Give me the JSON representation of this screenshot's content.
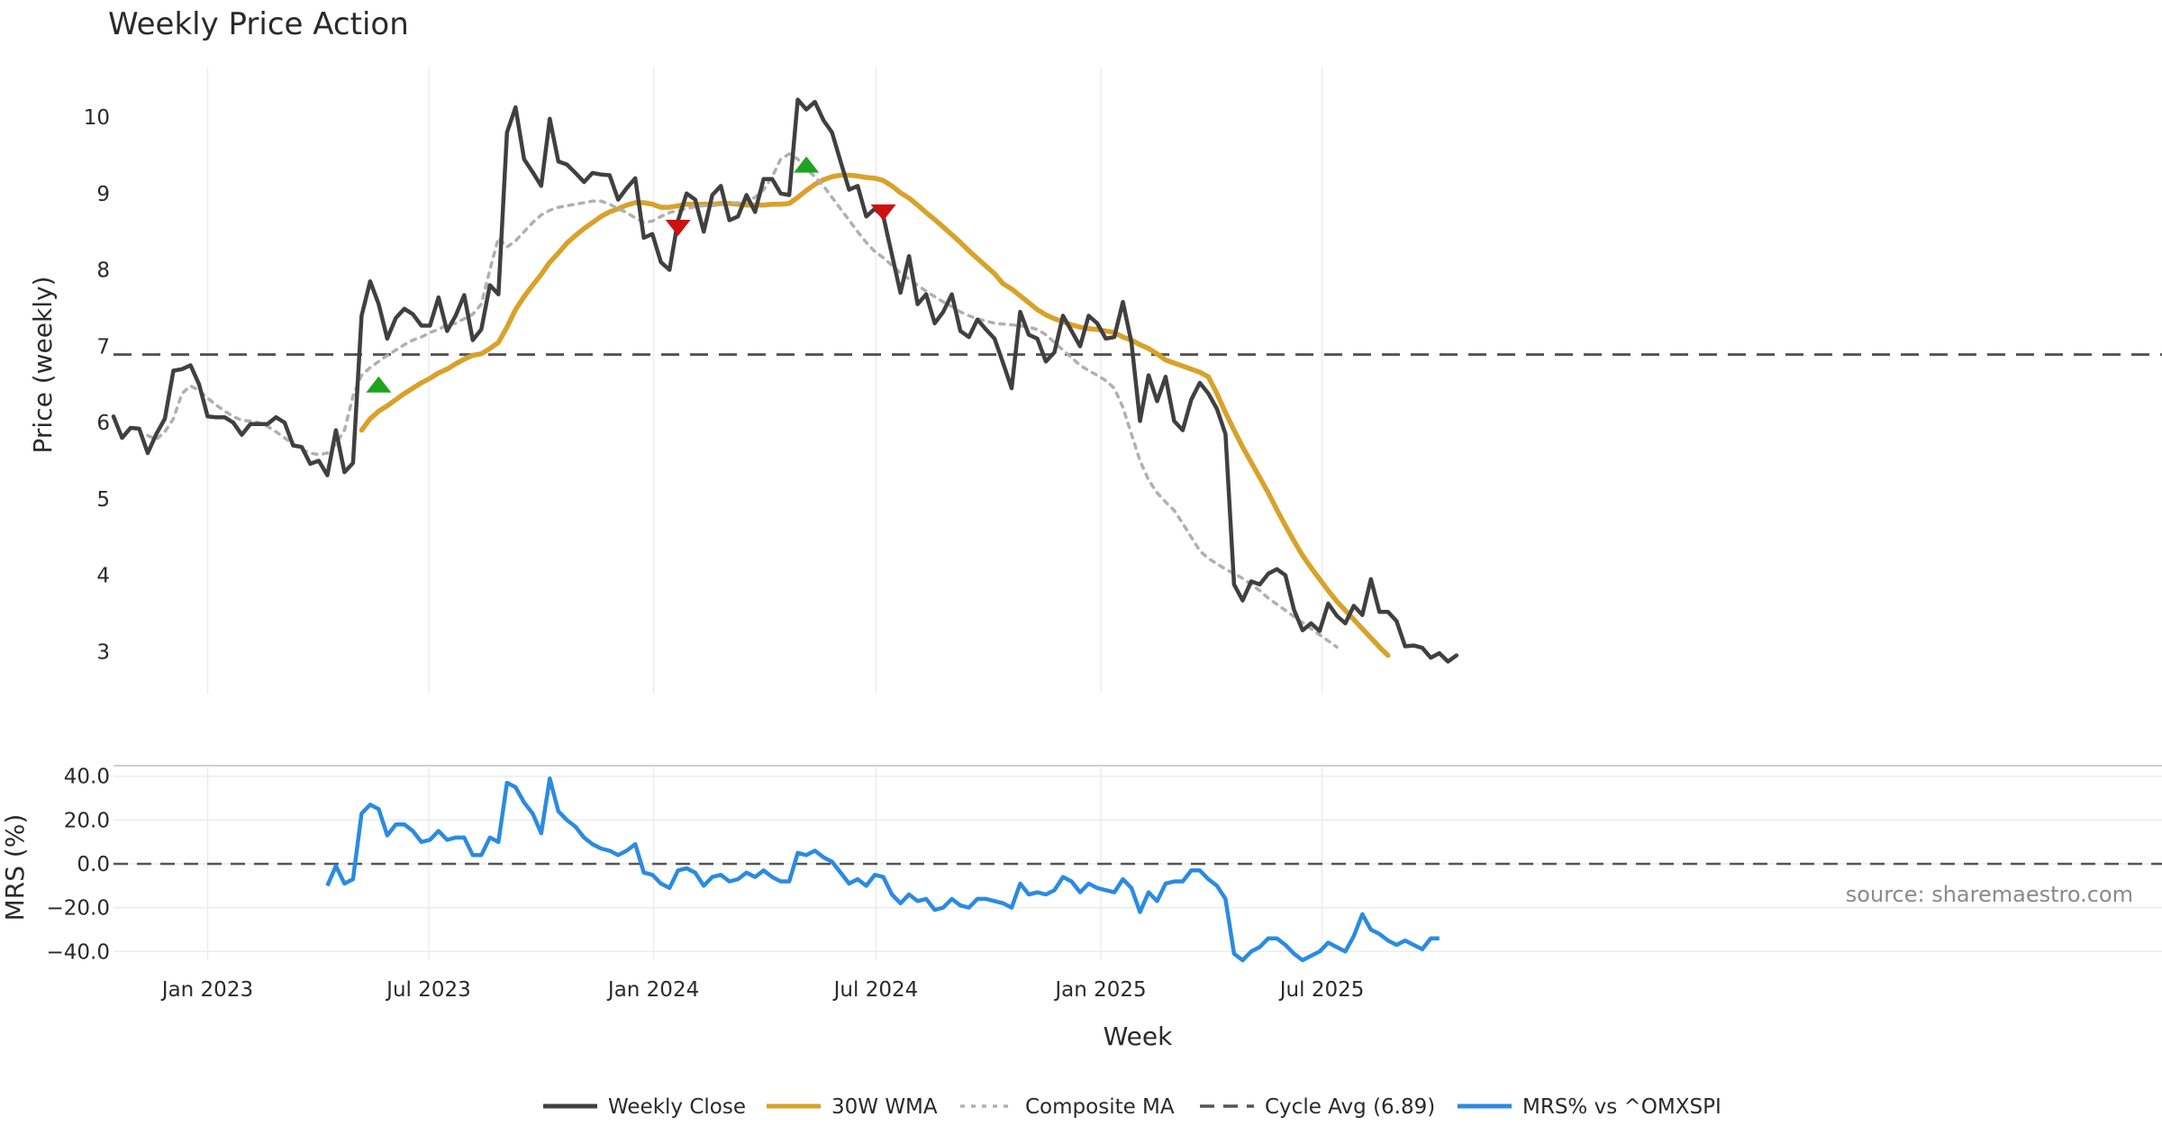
{
  "chart_data": {
    "type": "line",
    "title": "Weekly Price Action",
    "source_note": "source: sharemaestro.com",
    "x_axis": {
      "label": "Week",
      "tick_labels": [
        "Jan 2023",
        "Jul 2023",
        "Jan 2024",
        "Jul 2024",
        "Jan 2025",
        "Jul 2025"
      ],
      "tick_dates": [
        "2023-01-01",
        "2023-07-01",
        "2024-01-01",
        "2024-07-01",
        "2025-01-01",
        "2025-07-01"
      ],
      "start_date": "2022-10-16",
      "week_step_days": 7
    },
    "price_panel": {
      "ylabel": "Price (weekly)",
      "yticks": [
        3,
        4,
        5,
        6,
        7,
        8,
        9,
        10
      ],
      "ylim": [
        2.45,
        10.65
      ],
      "cycle_avg": {
        "name": "Cycle Avg (6.89)",
        "value": 6.89,
        "color": "#555555"
      },
      "series": [
        {
          "name": "Weekly Close",
          "color": "#404040",
          "start_index": 0,
          "values": [
            6.08,
            5.8,
            5.93,
            5.92,
            5.6,
            5.85,
            6.05,
            6.68,
            6.7,
            6.75,
            6.5,
            6.08,
            6.07,
            6.07,
            6.0,
            5.84,
            5.98,
            5.98,
            5.98,
            6.07,
            6.0,
            5.7,
            5.68,
            5.46,
            5.5,
            5.31,
            5.9,
            5.35,
            5.47,
            7.4,
            7.85,
            7.55,
            7.1,
            7.37,
            7.49,
            7.42,
            7.27,
            7.27,
            7.64,
            7.2,
            7.4,
            7.67,
            7.08,
            7.22,
            7.8,
            7.68,
            9.8,
            10.13,
            9.45,
            9.28,
            9.1,
            9.98,
            9.42,
            9.38,
            9.27,
            9.15,
            9.27,
            9.25,
            9.24,
            8.92,
            9.07,
            9.2,
            8.42,
            8.47,
            8.1,
            8.0,
            8.65,
            9.0,
            8.92,
            8.5,
            8.98,
            9.1,
            8.65,
            8.7,
            8.98,
            8.76,
            9.19,
            9.19,
            9.0,
            8.98,
            10.23,
            10.1,
            10.2,
            9.96,
            9.8,
            9.42,
            9.05,
            9.1,
            8.7,
            8.8,
            8.7,
            8.2,
            7.7,
            8.18,
            7.55,
            7.68,
            7.3,
            7.45,
            7.68,
            7.2,
            7.12,
            7.35,
            7.22,
            7.1,
            6.78,
            6.45,
            7.45,
            7.15,
            7.1,
            6.8,
            6.92,
            7.4,
            7.2,
            7.0,
            7.4,
            7.3,
            7.1,
            7.12,
            7.58,
            7.05,
            6.02,
            6.62,
            6.28,
            6.6,
            6.02,
            5.9,
            6.3,
            6.52,
            6.38,
            6.18,
            5.85,
            3.88,
            3.67,
            3.92,
            3.88,
            4.02,
            4.08,
            4.0,
            3.55,
            3.28,
            3.37,
            3.27,
            3.63,
            3.47,
            3.37,
            3.6,
            3.48,
            3.95,
            3.52,
            3.52,
            3.4,
            3.07,
            3.08,
            3.05,
            2.92,
            2.98,
            2.87,
            2.95
          ]
        },
        {
          "name": "30W WMA",
          "color": "#d8a22a",
          "start_index": 29,
          "values": [
            5.9,
            6.05,
            6.15,
            6.22,
            6.3,
            6.38,
            6.45,
            6.52,
            6.58,
            6.65,
            6.7,
            6.77,
            6.83,
            6.88,
            6.9,
            6.97,
            7.05,
            7.25,
            7.48,
            7.65,
            7.8,
            7.94,
            8.1,
            8.22,
            8.35,
            8.45,
            8.54,
            8.62,
            8.7,
            8.76,
            8.8,
            8.85,
            8.88,
            8.88,
            8.86,
            8.82,
            8.82,
            8.84,
            8.86,
            8.86,
            8.86,
            8.86,
            8.87,
            8.87,
            8.86,
            8.85,
            8.85,
            8.85,
            8.86,
            8.86,
            8.87,
            8.95,
            9.04,
            9.12,
            9.18,
            9.22,
            9.24,
            9.24,
            9.23,
            9.21,
            9.2,
            9.17,
            9.1,
            9.01,
            8.94,
            8.85,
            8.75,
            8.66,
            8.56,
            8.46,
            8.36,
            8.25,
            8.15,
            8.05,
            7.95,
            7.82,
            7.75,
            7.66,
            7.57,
            7.48,
            7.41,
            7.36,
            7.32,
            7.28,
            7.25,
            7.23,
            7.22,
            7.2,
            7.18,
            7.12,
            7.08,
            7.02,
            6.97,
            6.9,
            6.82,
            6.78,
            6.74,
            6.7,
            6.66,
            6.6,
            6.38,
            6.13,
            5.9,
            5.68,
            5.48,
            5.28,
            5.08,
            4.86,
            4.65,
            4.45,
            4.26,
            4.1,
            3.95,
            3.8,
            3.66,
            3.54,
            3.42,
            3.3,
            3.18,
            3.06,
            2.95
          ]
        },
        {
          "name": "Composite MA",
          "color": "#b0b0b0",
          "start_index": 4,
          "values": [
            5.83,
            5.78,
            5.88,
            6.05,
            6.38,
            6.48,
            6.42,
            6.32,
            6.23,
            6.15,
            6.08,
            6.03,
            6.02,
            6.0,
            5.95,
            5.88,
            5.8,
            5.72,
            5.65,
            5.6,
            5.58,
            5.6,
            5.72,
            5.9,
            6.35,
            6.62,
            6.72,
            6.8,
            6.88,
            6.95,
            7.02,
            7.08,
            7.12,
            7.18,
            7.22,
            7.28,
            7.3,
            7.36,
            7.42,
            7.55,
            8.0,
            8.42,
            8.3,
            8.38,
            8.5,
            8.62,
            8.72,
            8.78,
            8.82,
            8.84,
            8.86,
            8.88,
            8.9,
            8.9,
            8.86,
            8.8,
            8.75,
            8.68,
            8.62,
            8.64,
            8.7,
            8.75,
            8.78,
            8.8,
            8.83,
            8.84,
            8.84,
            8.85,
            8.87,
            8.88,
            8.9,
            8.95,
            9.05,
            9.22,
            9.45,
            9.52,
            9.45,
            9.32,
            9.22,
            9.1,
            8.95,
            8.8,
            8.65,
            8.5,
            8.36,
            8.24,
            8.16,
            8.06,
            7.96,
            7.88,
            7.8,
            7.72,
            7.65,
            7.58,
            7.52,
            7.45,
            7.4,
            7.36,
            7.33,
            7.3,
            7.29,
            7.28,
            7.27,
            7.25,
            7.22,
            7.15,
            7.05,
            6.95,
            6.85,
            6.75,
            6.68,
            6.62,
            6.55,
            6.45,
            6.2,
            5.85,
            5.5,
            5.25,
            5.08,
            4.96,
            4.85,
            4.68,
            4.5,
            4.32,
            4.22,
            4.15,
            4.08,
            4.02,
            3.96,
            3.88,
            3.8,
            3.7,
            3.62,
            3.54,
            3.46,
            3.38,
            3.3,
            3.22,
            3.14,
            3.06
          ]
        }
      ],
      "signals": [
        {
          "type": "buy",
          "index": 31,
          "value": 6.5,
          "color": "#1fa31f"
        },
        {
          "type": "sell",
          "index": 66,
          "value": 8.55,
          "color": "#cc1111"
        },
        {
          "type": "buy",
          "index": 81,
          "value": 9.38,
          "color": "#1fa31f"
        },
        {
          "type": "sell",
          "index": 90,
          "value": 8.75,
          "color": "#cc1111"
        }
      ]
    },
    "mrs_panel": {
      "ylabel": "MRS (%)",
      "yticks": [
        -40,
        -20,
        0,
        20,
        40
      ],
      "ytick_labels": [
        "−40.0",
        "−20.0",
        "0.0",
        "20.0",
        "40.0"
      ],
      "ylim": [
        -44,
        44
      ],
      "zero_line": 0,
      "series": [
        {
          "name": "MRS% vs ^OMXSPI",
          "color": "#2b8be0",
          "start_index": 25,
          "values": [
            -10,
            -1,
            -9,
            -7,
            23,
            27,
            25,
            13,
            18,
            18,
            15,
            10,
            11,
            15,
            11,
            12,
            12,
            4,
            4,
            12,
            10,
            37,
            35,
            28,
            23,
            14,
            39,
            24,
            20,
            17,
            12,
            9,
            7,
            6,
            4,
            6,
            9,
            -4,
            -5,
            -9,
            -11,
            -3,
            -2,
            -4,
            -10,
            -6,
            -5,
            -8,
            -7,
            -4,
            -6,
            -3,
            -6,
            -8,
            -8,
            5,
            4,
            6,
            3,
            1,
            -4,
            -9,
            -7,
            -10,
            -5,
            -6,
            -14,
            -18,
            -14,
            -17,
            -16,
            -21,
            -20,
            -16,
            -19,
            -20,
            -16,
            -16,
            -17,
            -18,
            -20,
            -9,
            -14,
            -13,
            -14,
            -12,
            -6,
            -8,
            -13,
            -9,
            -11,
            -12,
            -13,
            -7,
            -11,
            -22,
            -13,
            -17,
            -9,
            -8,
            -8,
            -3,
            -3,
            -7,
            -10,
            -16,
            -41,
            -44,
            -40,
            -38,
            -34,
            -34,
            -37,
            -41,
            -44,
            -42,
            -40,
            -36,
            -38,
            -40,
            -33,
            -23,
            -30,
            -32,
            -35,
            -37,
            -35,
            -37,
            -39,
            -34,
            -34
          ]
        }
      ]
    },
    "legend": {
      "placement": "bottom-center",
      "entries": [
        {
          "label": "Weekly Close",
          "color": "#404040",
          "style": "solid"
        },
        {
          "label": "30W WMA",
          "color": "#d8a22a",
          "style": "solid"
        },
        {
          "label": "Composite MA",
          "color": "#b0b0b0",
          "style": "dotted"
        },
        {
          "label": "Cycle Avg (6.89)",
          "color": "#555555",
          "style": "dashed"
        },
        {
          "label": "MRS% vs ^OMXSPI",
          "color": "#2b8be0",
          "style": "solid"
        }
      ]
    },
    "grid": true
  }
}
